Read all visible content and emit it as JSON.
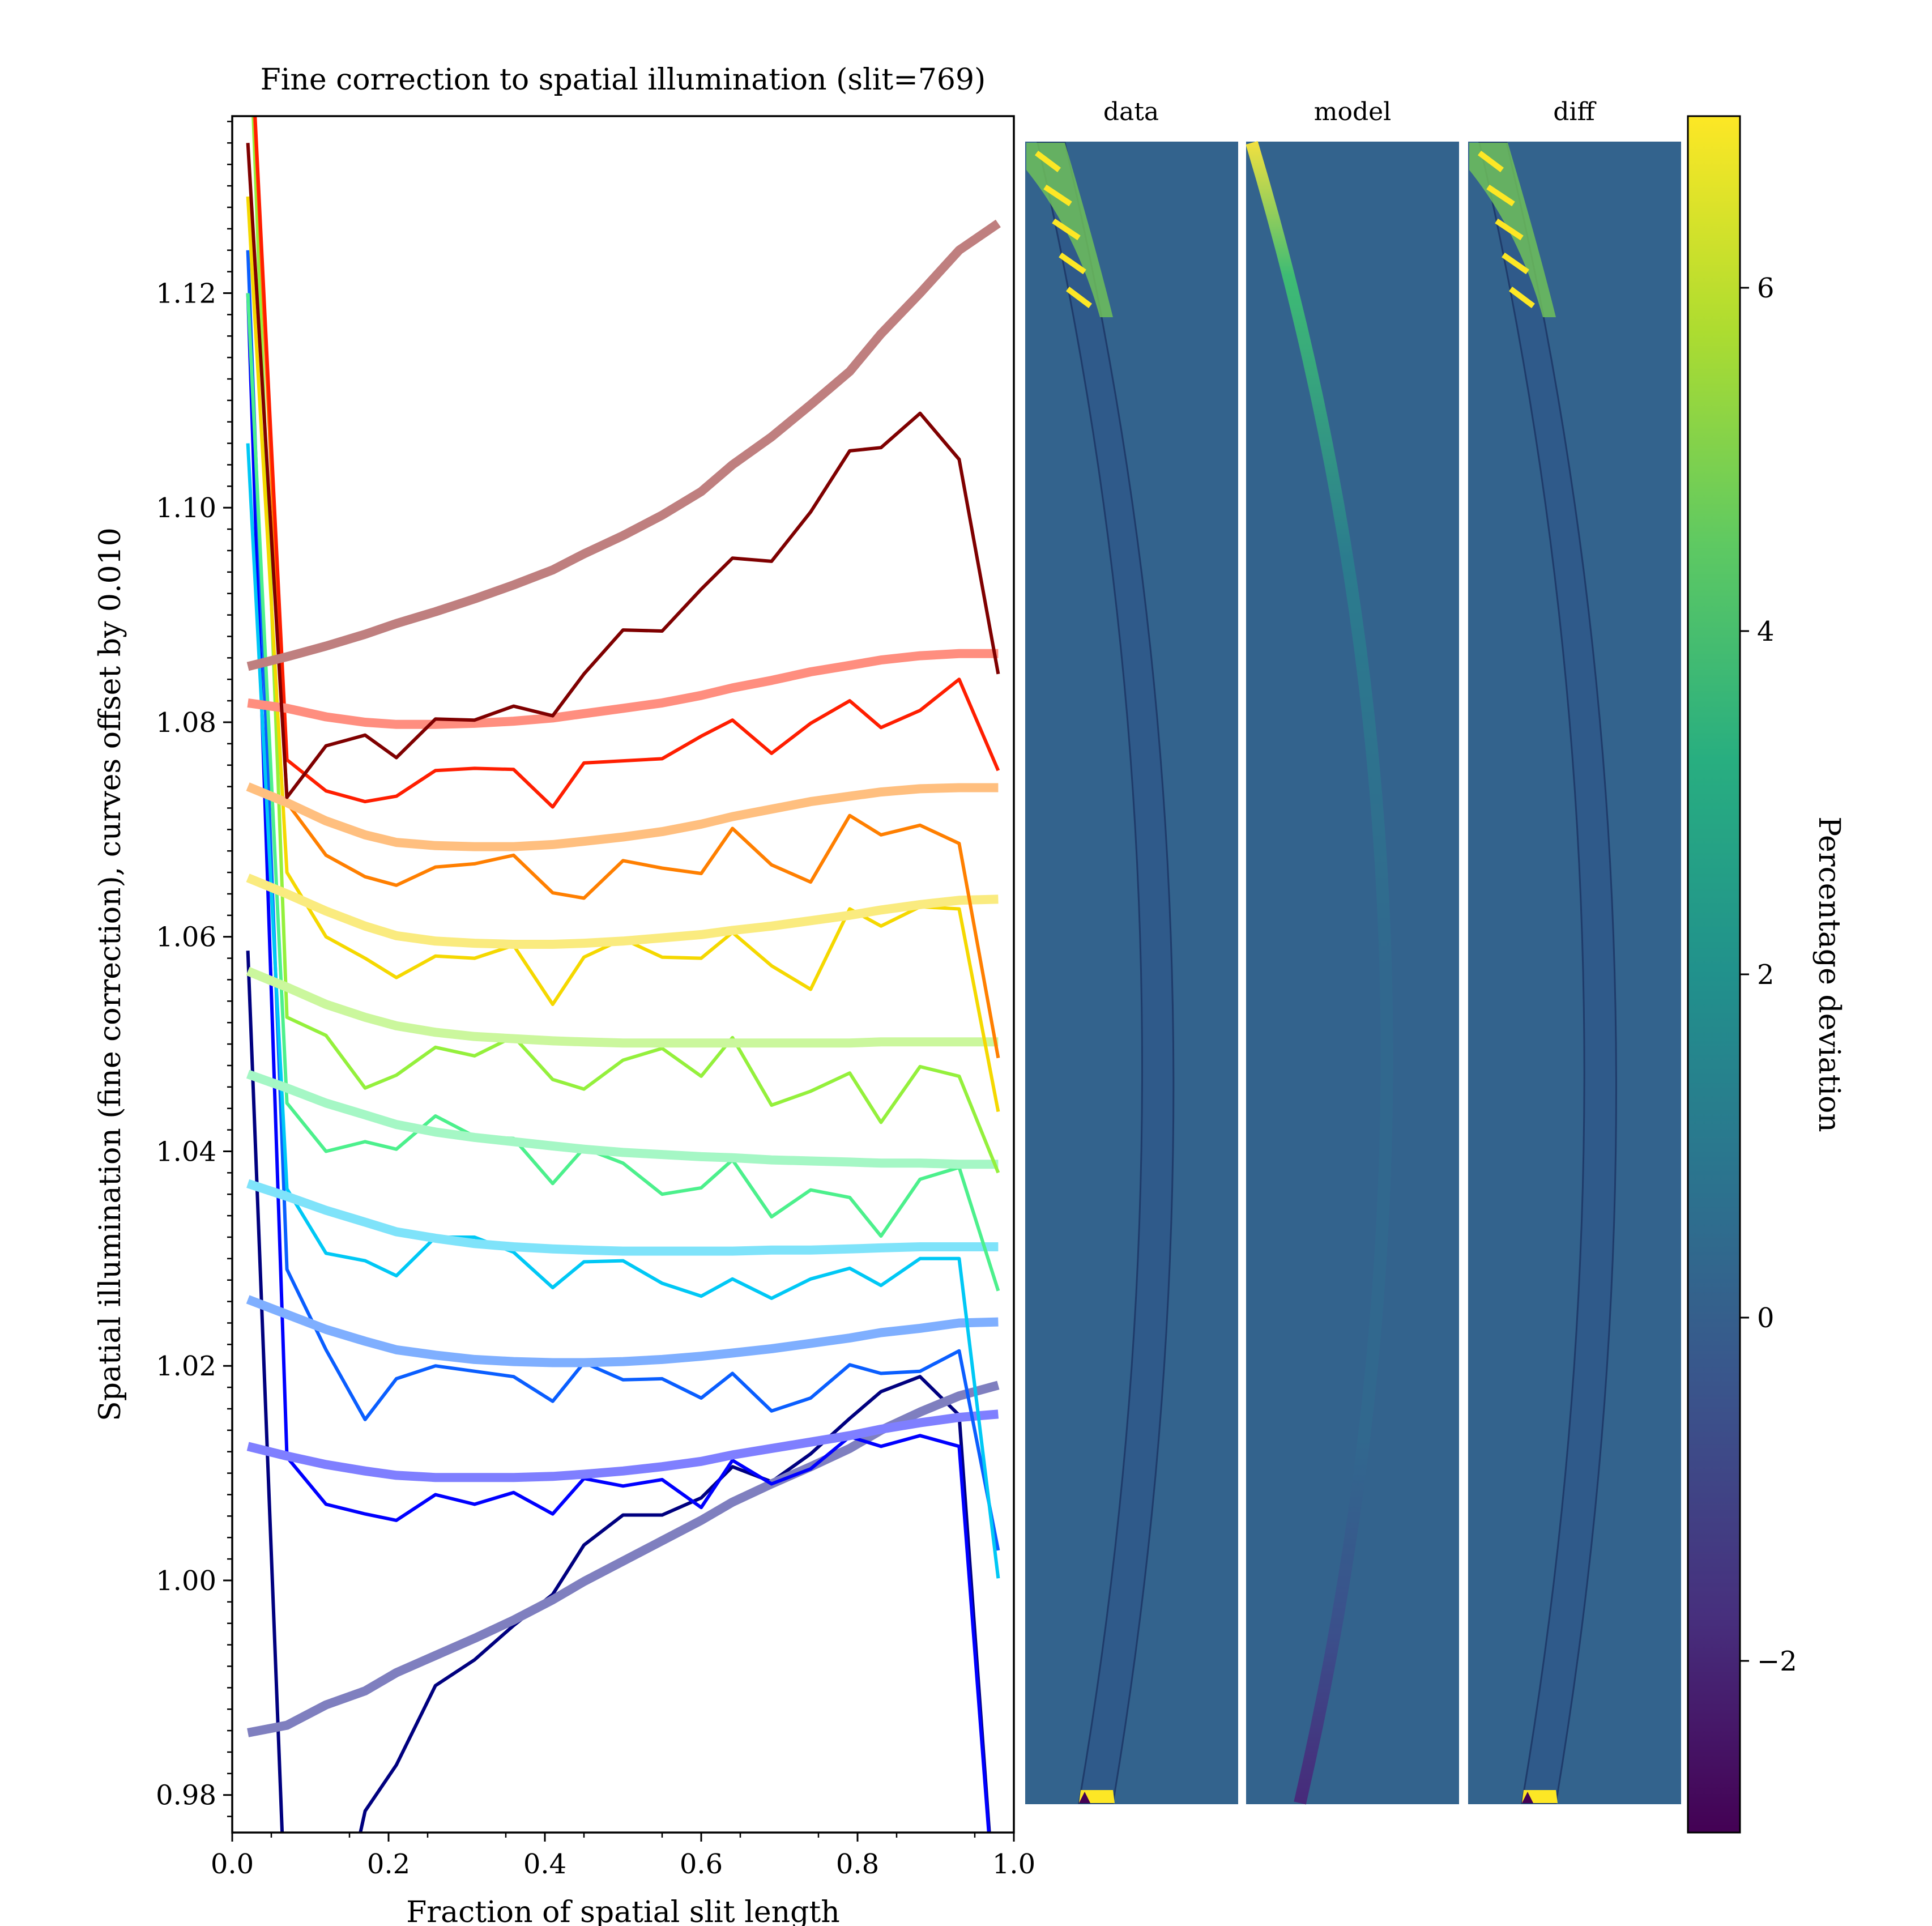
{
  "chart_data": [
    {
      "type": "line",
      "title": "Fine correction to spatial illumination (slit=769)",
      "xlabel": "Fraction of spatial slit length",
      "ylabel": "Spatial illumination (fine correction), curves offset by 0.010",
      "xlim": [
        0.0,
        1.0
      ],
      "ylim": [
        0.9765,
        1.1365
      ],
      "xticks": [
        "0.0",
        "0.2",
        "0.4",
        "0.6",
        "0.8",
        "1.0"
      ],
      "xtick_values": [
        0.0,
        0.2,
        0.4,
        0.6,
        0.8,
        1.0
      ],
      "yticks": [
        "0.98",
        "1.00",
        "1.02",
        "1.04",
        "1.06",
        "1.08",
        "1.10",
        "1.12"
      ],
      "ytick_values": [
        0.98,
        1.0,
        1.02,
        1.04,
        1.06,
        1.08,
        1.1,
        1.12
      ],
      "grid": false,
      "x": [
        0.02,
        0.07,
        0.12,
        0.17,
        0.21,
        0.26,
        0.31,
        0.36,
        0.41,
        0.45,
        0.5,
        0.55,
        0.6,
        0.64,
        0.69,
        0.74,
        0.79,
        0.83,
        0.88,
        0.93,
        0.98
      ],
      "series": [
        {
          "kind": "data",
          "color": "#00007f",
          "values": [
            1.0587,
            0.965,
            0.962,
            0.9785,
            0.9828,
            0.9902,
            0.9926,
            0.9958,
            0.9987,
            1.0033,
            1.0061,
            1.0061,
            1.0077,
            1.0106,
            1.0092,
            1.0118,
            1.0151,
            1.0176,
            1.019,
            1.0154,
            0.965
          ]
        },
        {
          "kind": "fit",
          "color": "#7f7fbf",
          "values": [
            0.9858,
            0.9865,
            0.9884,
            0.9897,
            0.9914,
            0.993,
            0.9946,
            0.9963,
            0.9982,
            0.9999,
            1.0018,
            1.0037,
            1.0056,
            1.0073,
            1.009,
            1.0106,
            1.0123,
            1.014,
            1.0157,
            1.0172,
            1.0182
          ]
        },
        {
          "kind": "data",
          "color": "#0000ff",
          "values": [
            1.12,
            1.0115,
            1.0071,
            1.0062,
            1.0056,
            1.008,
            1.0071,
            1.0082,
            1.0062,
            1.0095,
            1.0088,
            1.0094,
            1.0068,
            1.0112,
            1.009,
            1.0104,
            1.0134,
            1.0125,
            1.0135,
            1.0125,
            0.965
          ]
        },
        {
          "kind": "fit",
          "color": "#7f7fff",
          "values": [
            1.0125,
            1.0116,
            1.0108,
            1.0102,
            1.0098,
            1.0096,
            1.0096,
            1.0096,
            1.0097,
            1.0099,
            1.0102,
            1.0106,
            1.0111,
            1.0117,
            1.0123,
            1.0129,
            1.0135,
            1.0141,
            1.0147,
            1.0152,
            1.0155
          ]
        },
        {
          "kind": "data",
          "color": "#0a5eff",
          "values": [
            1.124,
            1.029,
            1.0215,
            1.015,
            1.0188,
            1.02,
            1.0195,
            1.019,
            1.0167,
            1.0203,
            1.0187,
            1.0188,
            1.017,
            1.0193,
            1.0158,
            1.017,
            1.0201,
            1.0193,
            1.0195,
            1.0214,
            1.0028
          ]
        },
        {
          "kind": "fit",
          "color": "#7fafff",
          "values": [
            1.0262,
            1.0248,
            1.0234,
            1.0223,
            1.0215,
            1.021,
            1.0206,
            1.0204,
            1.0203,
            1.0203,
            1.0204,
            1.0206,
            1.0209,
            1.0212,
            1.0216,
            1.0221,
            1.0226,
            1.0231,
            1.0235,
            1.024,
            1.0241
          ]
        },
        {
          "kind": "data",
          "color": "#00c8f5",
          "values": [
            1.106,
            1.0365,
            1.0305,
            1.0298,
            1.0284,
            1.032,
            1.032,
            1.0306,
            1.0273,
            1.0297,
            1.0298,
            1.0277,
            1.0265,
            1.0281,
            1.0263,
            1.0281,
            1.0291,
            1.0275,
            1.03,
            1.03,
            1.0002
          ]
        },
        {
          "kind": "fit",
          "color": "#7fe3fa",
          "values": [
            1.037,
            1.0358,
            1.0345,
            1.0334,
            1.0325,
            1.0319,
            1.0314,
            1.0311,
            1.0309,
            1.0308,
            1.0307,
            1.0307,
            1.0307,
            1.0307,
            1.0308,
            1.0308,
            1.0309,
            1.031,
            1.0311,
            1.0311,
            1.0311
          ]
        },
        {
          "kind": "data",
          "color": "#4cf08c",
          "values": [
            1.12,
            1.0445,
            1.04,
            1.0409,
            1.0402,
            1.0433,
            1.0414,
            1.0412,
            1.037,
            1.0403,
            1.0389,
            1.036,
            1.0366,
            1.0392,
            1.0339,
            1.0364,
            1.0357,
            1.0321,
            1.0374,
            1.0385,
            1.027
          ]
        },
        {
          "kind": "fit",
          "color": "#a5f7c5",
          "values": [
            1.0472,
            1.0459,
            1.0445,
            1.0434,
            1.0425,
            1.0418,
            1.0413,
            1.0409,
            1.0405,
            1.0402,
            1.0399,
            1.0397,
            1.0395,
            1.0394,
            1.0392,
            1.0391,
            1.039,
            1.0389,
            1.0389,
            1.0388,
            1.0388
          ]
        },
        {
          "kind": "data",
          "color": "#94f03c",
          "values": [
            1.15,
            1.0525,
            1.0508,
            1.0459,
            1.0471,
            1.0497,
            1.0489,
            1.0507,
            1.0467,
            1.0458,
            1.0485,
            1.0496,
            1.047,
            1.0506,
            1.0443,
            1.0456,
            1.0473,
            1.0427,
            1.0479,
            1.047,
            1.038
          ]
        },
        {
          "kind": "fit",
          "color": "#cbf79d",
          "values": [
            1.0568,
            1.0553,
            1.0537,
            1.0525,
            1.0517,
            1.0511,
            1.0507,
            1.0505,
            1.0503,
            1.0502,
            1.0501,
            1.0501,
            1.0501,
            1.0501,
            1.0501,
            1.0501,
            1.0501,
            1.0502,
            1.0502,
            1.0502,
            1.0502
          ]
        },
        {
          "kind": "data",
          "color": "#f5d800",
          "values": [
            1.129,
            1.066,
            1.06,
            1.058,
            1.0562,
            1.0582,
            1.058,
            1.0592,
            1.0537,
            1.0581,
            1.0598,
            1.0581,
            1.058,
            1.0604,
            1.0573,
            1.0551,
            1.0626,
            1.061,
            1.0628,
            1.0626,
            1.0437
          ]
        },
        {
          "kind": "fit",
          "color": "#faeb7f",
          "values": [
            1.0655,
            1.064,
            1.0624,
            1.061,
            1.0601,
            1.0596,
            1.0594,
            1.0593,
            1.0593,
            1.0594,
            1.0596,
            1.0599,
            1.0602,
            1.0606,
            1.061,
            1.0615,
            1.062,
            1.0625,
            1.063,
            1.0634,
            1.0635
          ]
        },
        {
          "kind": "data",
          "color": "#ff7f00",
          "values": [
            1.15,
            1.0725,
            1.0676,
            1.0656,
            1.0648,
            1.0665,
            1.0668,
            1.0676,
            1.0641,
            1.0636,
            1.0671,
            1.0664,
            1.0659,
            1.0701,
            1.0667,
            1.0651,
            1.0713,
            1.0695,
            1.0704,
            1.0687,
            1.0487
          ]
        },
        {
          "kind": "fit",
          "color": "#ffbf7f",
          "values": [
            1.074,
            1.0725,
            1.0708,
            1.0695,
            1.0688,
            1.0685,
            1.0684,
            1.0684,
            1.0686,
            1.0689,
            1.0693,
            1.0698,
            1.0705,
            1.0712,
            1.0719,
            1.0726,
            1.0731,
            1.0735,
            1.0738,
            1.0739,
            1.0739
          ]
        },
        {
          "kind": "data",
          "color": "#ff1e00",
          "values": [
            1.15,
            1.0765,
            1.0736,
            1.0726,
            1.0731,
            1.0755,
            1.0757,
            1.0756,
            1.0721,
            1.0762,
            1.0764,
            1.0766,
            1.0787,
            1.0802,
            1.0771,
            1.0799,
            1.082,
            1.0795,
            1.0811,
            1.084,
            1.0755
          ]
        },
        {
          "kind": "fit",
          "color": "#ff8e7f",
          "values": [
            1.0818,
            1.0813,
            1.0805,
            1.08,
            1.0798,
            1.0798,
            1.0799,
            1.0801,
            1.0804,
            1.0808,
            1.0813,
            1.0818,
            1.0825,
            1.0832,
            1.0839,
            1.0847,
            1.0853,
            1.0858,
            1.0862,
            1.0864,
            1.0864
          ]
        },
        {
          "kind": "data",
          "color": "#7f0000",
          "values": [
            1.134,
            1.073,
            1.0778,
            1.0788,
            1.0767,
            1.0803,
            1.0802,
            1.0815,
            1.0806,
            1.0845,
            1.0886,
            1.0885,
            1.0924,
            1.0953,
            1.095,
            1.0996,
            1.1053,
            1.1056,
            1.1088,
            1.1045,
            1.0845
          ]
        },
        {
          "kind": "fit",
          "color": "#bf7f7f",
          "values": [
            1.0852,
            1.0861,
            1.0871,
            1.0882,
            1.0892,
            1.0903,
            1.0915,
            1.0928,
            1.0942,
            1.0957,
            1.0974,
            1.0993,
            1.1015,
            1.104,
            1.1066,
            1.1096,
            1.1127,
            1.1162,
            1.12,
            1.124,
            1.1265
          ]
        }
      ]
    },
    {
      "type": "heatmap",
      "panels": [
        {
          "title": "data",
          "content": "slit-image-data"
        },
        {
          "title": "model",
          "content": "slit-image-model"
        },
        {
          "title": "diff",
          "content": "slit-image-diff"
        }
      ],
      "colormap": "viridis",
      "background_value": 0,
      "colorbar": {
        "label": "Percentage deviation",
        "range": [
          -3.0,
          7.0
        ],
        "ticks": [
          "−2",
          "0",
          "2",
          "4",
          "6"
        ],
        "tick_values": [
          -2,
          0,
          2,
          4,
          6
        ]
      }
    }
  ]
}
